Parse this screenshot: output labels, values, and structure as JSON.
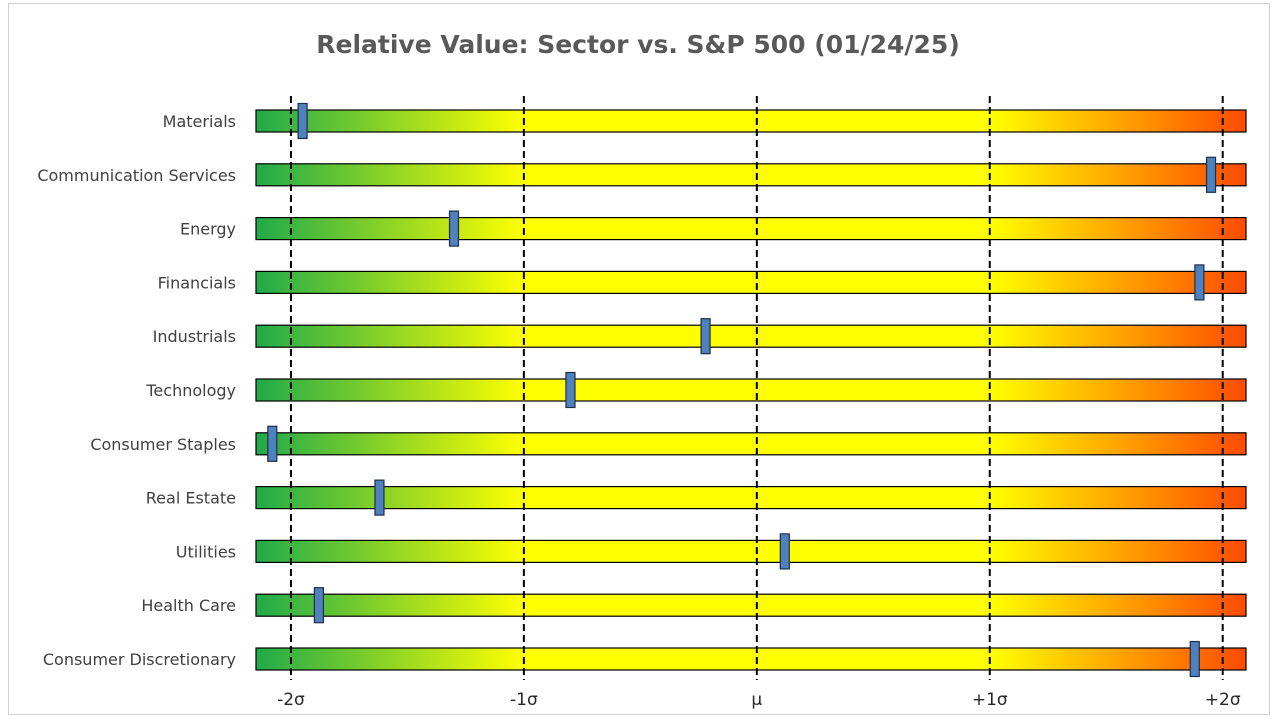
{
  "chart_data": {
    "type": "bar",
    "title": "Relative Value: Sector vs. S&P 500 (01/24/25)",
    "categories": [
      "Materials",
      "Communication Services",
      "Energy",
      "Financials",
      "Industrials",
      "Technology",
      "Consumer Staples",
      "Real Estate",
      "Utilities",
      "Health Care",
      "Consumer Discretionary"
    ],
    "values": [
      -1.95,
      1.95,
      -1.3,
      1.9,
      -0.22,
      -0.8,
      -2.08,
      -1.62,
      0.12,
      -1.88,
      1.88
    ],
    "xlim": [
      -2.15,
      2.1
    ],
    "x_ticks": [
      {
        "value": -2,
        "label": "-2σ"
      },
      {
        "value": -1,
        "label": "-1σ"
      },
      {
        "value": 0,
        "label": "μ"
      },
      {
        "value": 1,
        "label": "+1σ"
      },
      {
        "value": 2,
        "label": "+2σ"
      }
    ],
    "gradient_colors": {
      "low": "#1faa4a",
      "mid": "#ffff00",
      "high": "#ff4a00"
    },
    "marker_color": "#4f81bd",
    "grid": "dashed vertical at tick values"
  }
}
